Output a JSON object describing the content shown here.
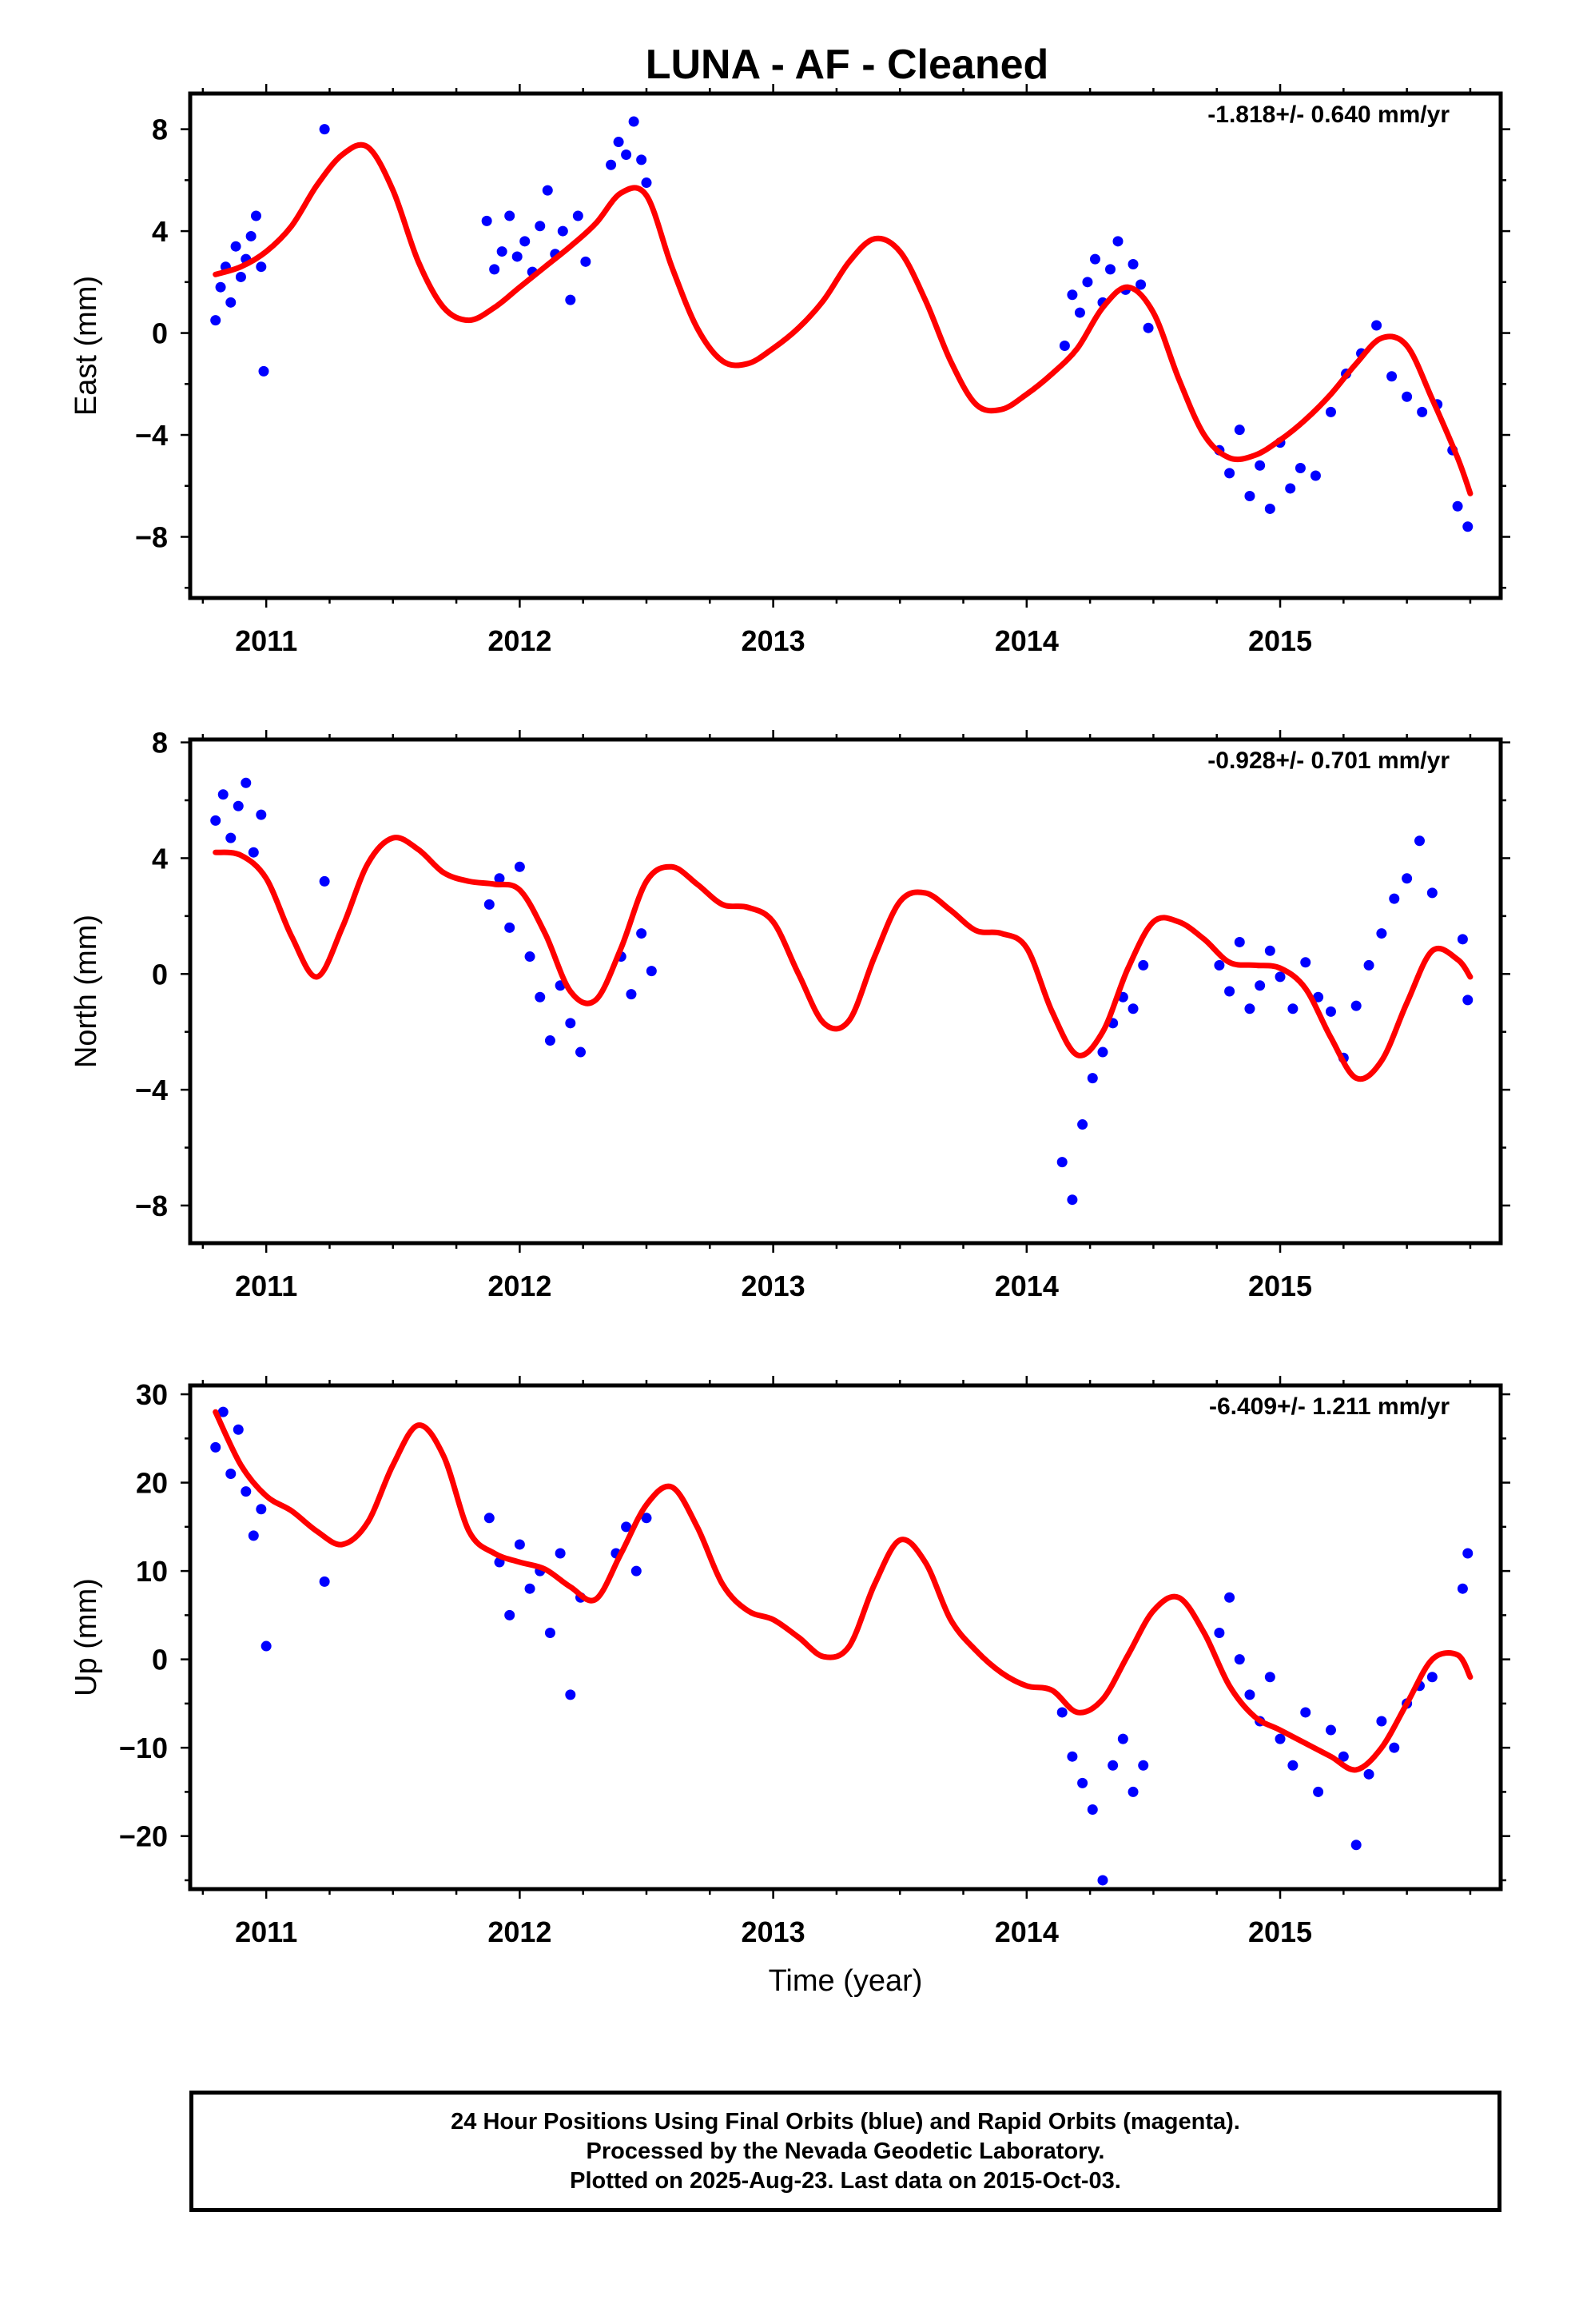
{
  "title": "LUNA  - AF - Cleaned",
  "xlabel": "Time (year)",
  "footer": {
    "line1": "24 Hour Positions Using Final Orbits (blue) and Rapid Orbits (magenta).",
    "line2": "Processed by the Nevada Geodetic Laboratory.",
    "line3": "Plotted on 2025-Aug-23. Last data on 2015-Oct-03."
  },
  "colors": {
    "points": "#0000ff",
    "fit": "#ff0000",
    "axes": "#000000"
  },
  "chart_data": [
    {
      "type": "scatter",
      "ylabel": "East (mm)",
      "rate_label": "-1.818+/- 0.640 mm/yr",
      "xlim": [
        2010.7,
        2015.87
      ],
      "ylim": [
        -10.4,
        9.4
      ],
      "xticks": [
        2011,
        2012,
        2013,
        2014,
        2015
      ],
      "yticks": [
        -8,
        -4,
        0,
        4,
        8
      ],
      "ytick_labels": [
        "−8",
        "−4",
        "0",
        "4",
        "8"
      ],
      "series": [
        {
          "role": "observations",
          "x": [
            2010.8,
            2010.82,
            2010.84,
            2010.86,
            2010.88,
            2010.9,
            2010.92,
            2010.94,
            2010.96,
            2010.98,
            2010.99,
            2011.23,
            2011.87,
            2011.9,
            2011.93,
            2011.96,
            2011.99,
            2012.02,
            2012.05,
            2012.08,
            2012.11,
            2012.14,
            2012.17,
            2012.2,
            2012.23,
            2012.26,
            2012.36,
            2012.39,
            2012.42,
            2012.45,
            2012.48,
            2012.5,
            2014.15,
            2014.18,
            2014.21,
            2014.24,
            2014.27,
            2014.3,
            2014.33,
            2014.36,
            2014.39,
            2014.42,
            2014.45,
            2014.48,
            2014.76,
            2014.8,
            2014.84,
            2014.88,
            2014.92,
            2014.96,
            2015.0,
            2015.04,
            2015.08,
            2015.14,
            2015.2,
            2015.26,
            2015.32,
            2015.38,
            2015.44,
            2015.5,
            2015.56,
            2015.62,
            2015.68,
            2015.7,
            2015.74
          ],
          "y": [
            0.5,
            1.8,
            2.6,
            1.2,
            3.4,
            2.2,
            2.9,
            3.8,
            4.6,
            2.6,
            -1.5,
            8.0,
            4.4,
            2.5,
            3.2,
            4.6,
            3.0,
            3.6,
            2.4,
            4.2,
            5.6,
            3.1,
            4.0,
            1.3,
            4.6,
            2.8,
            6.6,
            7.5,
            7.0,
            8.3,
            6.8,
            5.9,
            -0.5,
            1.5,
            0.8,
            2.0,
            2.9,
            1.2,
            2.5,
            3.6,
            1.7,
            2.7,
            1.9,
            0.2,
            -4.6,
            -5.5,
            -3.8,
            -6.4,
            -5.2,
            -6.9,
            -4.3,
            -6.1,
            -5.3,
            -5.6,
            -3.1,
            -1.6,
            -0.8,
            0.3,
            -1.7,
            -2.5,
            -3.1,
            -2.8,
            -4.6,
            -6.8,
            -7.6
          ]
        },
        {
          "role": "fit",
          "x": [
            2010.8,
            2010.9,
            2011.0,
            2011.1,
            2011.2,
            2011.3,
            2011.4,
            2011.5,
            2011.6,
            2011.7,
            2011.8,
            2011.9,
            2012.0,
            2012.1,
            2012.2,
            2012.3,
            2012.4,
            2012.5,
            2012.6,
            2012.7,
            2012.8,
            2012.9,
            2013.0,
            2013.1,
            2013.2,
            2013.3,
            2013.4,
            2013.5,
            2013.6,
            2013.7,
            2013.8,
            2013.9,
            2014.0,
            2014.1,
            2014.2,
            2014.3,
            2014.4,
            2014.5,
            2014.6,
            2014.7,
            2014.8,
            2014.9,
            2015.0,
            2015.1,
            2015.2,
            2015.3,
            2015.4,
            2015.5,
            2015.6,
            2015.7,
            2015.75
          ],
          "y": [
            2.3,
            2.6,
            3.2,
            4.2,
            5.8,
            7.0,
            7.3,
            5.6,
            2.8,
            1.0,
            0.5,
            1.0,
            1.8,
            2.6,
            3.4,
            4.3,
            5.5,
            5.4,
            2.6,
            0.2,
            -1.1,
            -1.2,
            -0.6,
            0.2,
            1.3,
            2.8,
            3.7,
            3.2,
            1.3,
            -1.1,
            -2.8,
            -3.0,
            -2.4,
            -1.6,
            -0.6,
            1.0,
            1.8,
            0.8,
            -1.8,
            -4.0,
            -4.9,
            -4.8,
            -4.2,
            -3.4,
            -2.4,
            -1.2,
            -0.2,
            -0.5,
            -2.6,
            -4.9,
            -6.3
          ]
        }
      ]
    },
    {
      "type": "scatter",
      "ylabel": "North (mm)",
      "rate_label": "-0.928+/- 0.701 mm/yr",
      "xlim": [
        2010.7,
        2015.87
      ],
      "ylim": [
        -9.3,
        8.1
      ],
      "xticks": [
        2011,
        2012,
        2013,
        2014,
        2015
      ],
      "yticks": [
        -8,
        -4,
        0,
        4,
        8
      ],
      "ytick_labels": [
        "−8",
        "−4",
        "0",
        "4",
        "8"
      ],
      "series": [
        {
          "role": "observations",
          "x": [
            2010.8,
            2010.83,
            2010.86,
            2010.89,
            2010.92,
            2010.95,
            2010.98,
            2011.23,
            2011.88,
            2011.92,
            2011.96,
            2012.0,
            2012.04,
            2012.08,
            2012.12,
            2012.16,
            2012.2,
            2012.24,
            2012.4,
            2012.44,
            2012.48,
            2012.52,
            2014.14,
            2014.18,
            2014.22,
            2014.26,
            2014.3,
            2014.34,
            2014.38,
            2014.42,
            2014.46,
            2014.76,
            2014.8,
            2014.84,
            2014.88,
            2014.92,
            2014.96,
            2015.0,
            2015.05,
            2015.1,
            2015.15,
            2015.2,
            2015.25,
            2015.3,
            2015.35,
            2015.4,
            2015.45,
            2015.5,
            2015.55,
            2015.6,
            2015.72,
            2015.74
          ],
          "y": [
            5.3,
            6.2,
            4.7,
            5.8,
            6.6,
            4.2,
            5.5,
            3.2,
            2.4,
            3.3,
            1.6,
            3.7,
            0.6,
            -0.8,
            -2.3,
            -0.4,
            -1.7,
            -2.7,
            0.6,
            -0.7,
            1.4,
            0.1,
            -6.5,
            -7.8,
            -5.2,
            -3.6,
            -2.7,
            -1.7,
            -0.8,
            -1.2,
            0.3,
            0.3,
            -0.6,
            1.1,
            -1.2,
            -0.4,
            0.8,
            -0.1,
            -1.2,
            0.4,
            -0.8,
            -1.3,
            -2.9,
            -1.1,
            0.3,
            1.4,
            2.6,
            3.3,
            4.6,
            2.8,
            1.2,
            -0.9
          ]
        },
        {
          "role": "fit",
          "x": [
            2010.8,
            2010.9,
            2011.0,
            2011.1,
            2011.2,
            2011.3,
            2011.4,
            2011.5,
            2011.6,
            2011.7,
            2011.8,
            2011.9,
            2012.0,
            2012.1,
            2012.2,
            2012.3,
            2012.4,
            2012.5,
            2012.6,
            2012.7,
            2012.8,
            2012.9,
            2013.0,
            2013.1,
            2013.2,
            2013.3,
            2013.4,
            2013.5,
            2013.6,
            2013.7,
            2013.8,
            2013.9,
            2014.0,
            2014.1,
            2014.2,
            2014.3,
            2014.4,
            2014.5,
            2014.6,
            2014.7,
            2014.8,
            2014.9,
            2015.0,
            2015.1,
            2015.2,
            2015.3,
            2015.4,
            2015.5,
            2015.6,
            2015.7,
            2015.75
          ],
          "y": [
            4.2,
            4.1,
            3.3,
            1.3,
            -0.1,
            1.6,
            3.8,
            4.7,
            4.3,
            3.5,
            3.2,
            3.1,
            2.9,
            1.4,
            -0.6,
            -0.9,
            0.9,
            3.2,
            3.7,
            3.1,
            2.4,
            2.3,
            1.8,
            0.0,
            -1.7,
            -1.6,
            0.6,
            2.5,
            2.8,
            2.2,
            1.5,
            1.4,
            0.9,
            -1.3,
            -2.8,
            -2.0,
            0.2,
            1.8,
            1.8,
            1.2,
            0.4,
            0.3,
            0.2,
            -0.5,
            -2.2,
            -3.6,
            -3.0,
            -1.0,
            0.8,
            0.5,
            -0.1
          ]
        }
      ]
    },
    {
      "type": "scatter",
      "ylabel": "Up (mm)",
      "rate_label": "-6.409+/- 1.211 mm/yr",
      "xlim": [
        2010.7,
        2015.87
      ],
      "ylim": [
        -26,
        31
      ],
      "xticks": [
        2011,
        2012,
        2013,
        2014,
        2015
      ],
      "yticks": [
        -20,
        -10,
        0,
        10,
        20,
        30
      ],
      "ytick_labels": [
        "−20",
        "−10",
        "0",
        "10",
        "20",
        "30"
      ],
      "series": [
        {
          "role": "observations",
          "x": [
            2010.8,
            2010.83,
            2010.86,
            2010.89,
            2010.92,
            2010.95,
            2010.98,
            2011.0,
            2011.23,
            2011.88,
            2011.92,
            2011.96,
            2012.0,
            2012.04,
            2012.08,
            2012.12,
            2012.16,
            2012.2,
            2012.24,
            2012.38,
            2012.42,
            2012.46,
            2012.5,
            2014.14,
            2014.18,
            2014.22,
            2014.26,
            2014.3,
            2014.34,
            2014.38,
            2014.42,
            2014.46,
            2014.76,
            2014.8,
            2014.84,
            2014.88,
            2014.92,
            2014.96,
            2015.0,
            2015.05,
            2015.1,
            2015.15,
            2015.2,
            2015.25,
            2015.3,
            2015.35,
            2015.4,
            2015.45,
            2015.5,
            2015.55,
            2015.6,
            2015.72,
            2015.74
          ],
          "y": [
            24.0,
            28.0,
            21.0,
            26.0,
            19.0,
            14.0,
            17.0,
            1.5,
            8.8,
            16.0,
            11.0,
            5.0,
            13.0,
            8.0,
            10.0,
            3.0,
            12.0,
            -4.0,
            7.0,
            12.0,
            15.0,
            10.0,
            16.0,
            -6.0,
            -11.0,
            -14.0,
            -17.0,
            -25.0,
            -12.0,
            -9.0,
            -15.0,
            -12.0,
            3.0,
            7.0,
            0.0,
            -4.0,
            -7.0,
            -2.0,
            -9.0,
            -12.0,
            -6.0,
            -15.0,
            -8.0,
            -11.0,
            -21.0,
            -13.0,
            -7.0,
            -10.0,
            -5.0,
            -3.0,
            -2.0,
            8.0,
            12.0
          ]
        },
        {
          "role": "fit",
          "x": [
            2010.8,
            2010.9,
            2011.0,
            2011.1,
            2011.2,
            2011.3,
            2011.4,
            2011.5,
            2011.6,
            2011.7,
            2011.8,
            2011.9,
            2012.0,
            2012.1,
            2012.2,
            2012.3,
            2012.4,
            2012.5,
            2012.6,
            2012.7,
            2012.8,
            2012.9,
            2013.0,
            2013.1,
            2013.2,
            2013.3,
            2013.4,
            2013.5,
            2013.6,
            2013.7,
            2013.8,
            2013.9,
            2014.0,
            2014.1,
            2014.2,
            2014.3,
            2014.4,
            2014.5,
            2014.6,
            2014.7,
            2014.8,
            2014.9,
            2015.0,
            2015.1,
            2015.2,
            2015.3,
            2015.4,
            2015.5,
            2015.6,
            2015.7,
            2015.75
          ],
          "y": [
            28.0,
            22.0,
            18.5,
            16.8,
            14.5,
            13.0,
            15.5,
            22.0,
            26.5,
            23.0,
            14.5,
            12.0,
            11.0,
            10.2,
            8.2,
            6.8,
            12.0,
            17.5,
            19.5,
            15.0,
            8.5,
            5.5,
            4.5,
            2.5,
            0.3,
            1.5,
            8.5,
            13.5,
            11.0,
            4.5,
            1.0,
            -1.5,
            -3.0,
            -3.5,
            -6.0,
            -4.5,
            0.5,
            5.5,
            7.0,
            3.0,
            -3.0,
            -6.5,
            -8.0,
            -9.5,
            -11.0,
            -12.5,
            -10.0,
            -5.0,
            0.0,
            0.5,
            -2.0
          ]
        }
      ]
    }
  ]
}
